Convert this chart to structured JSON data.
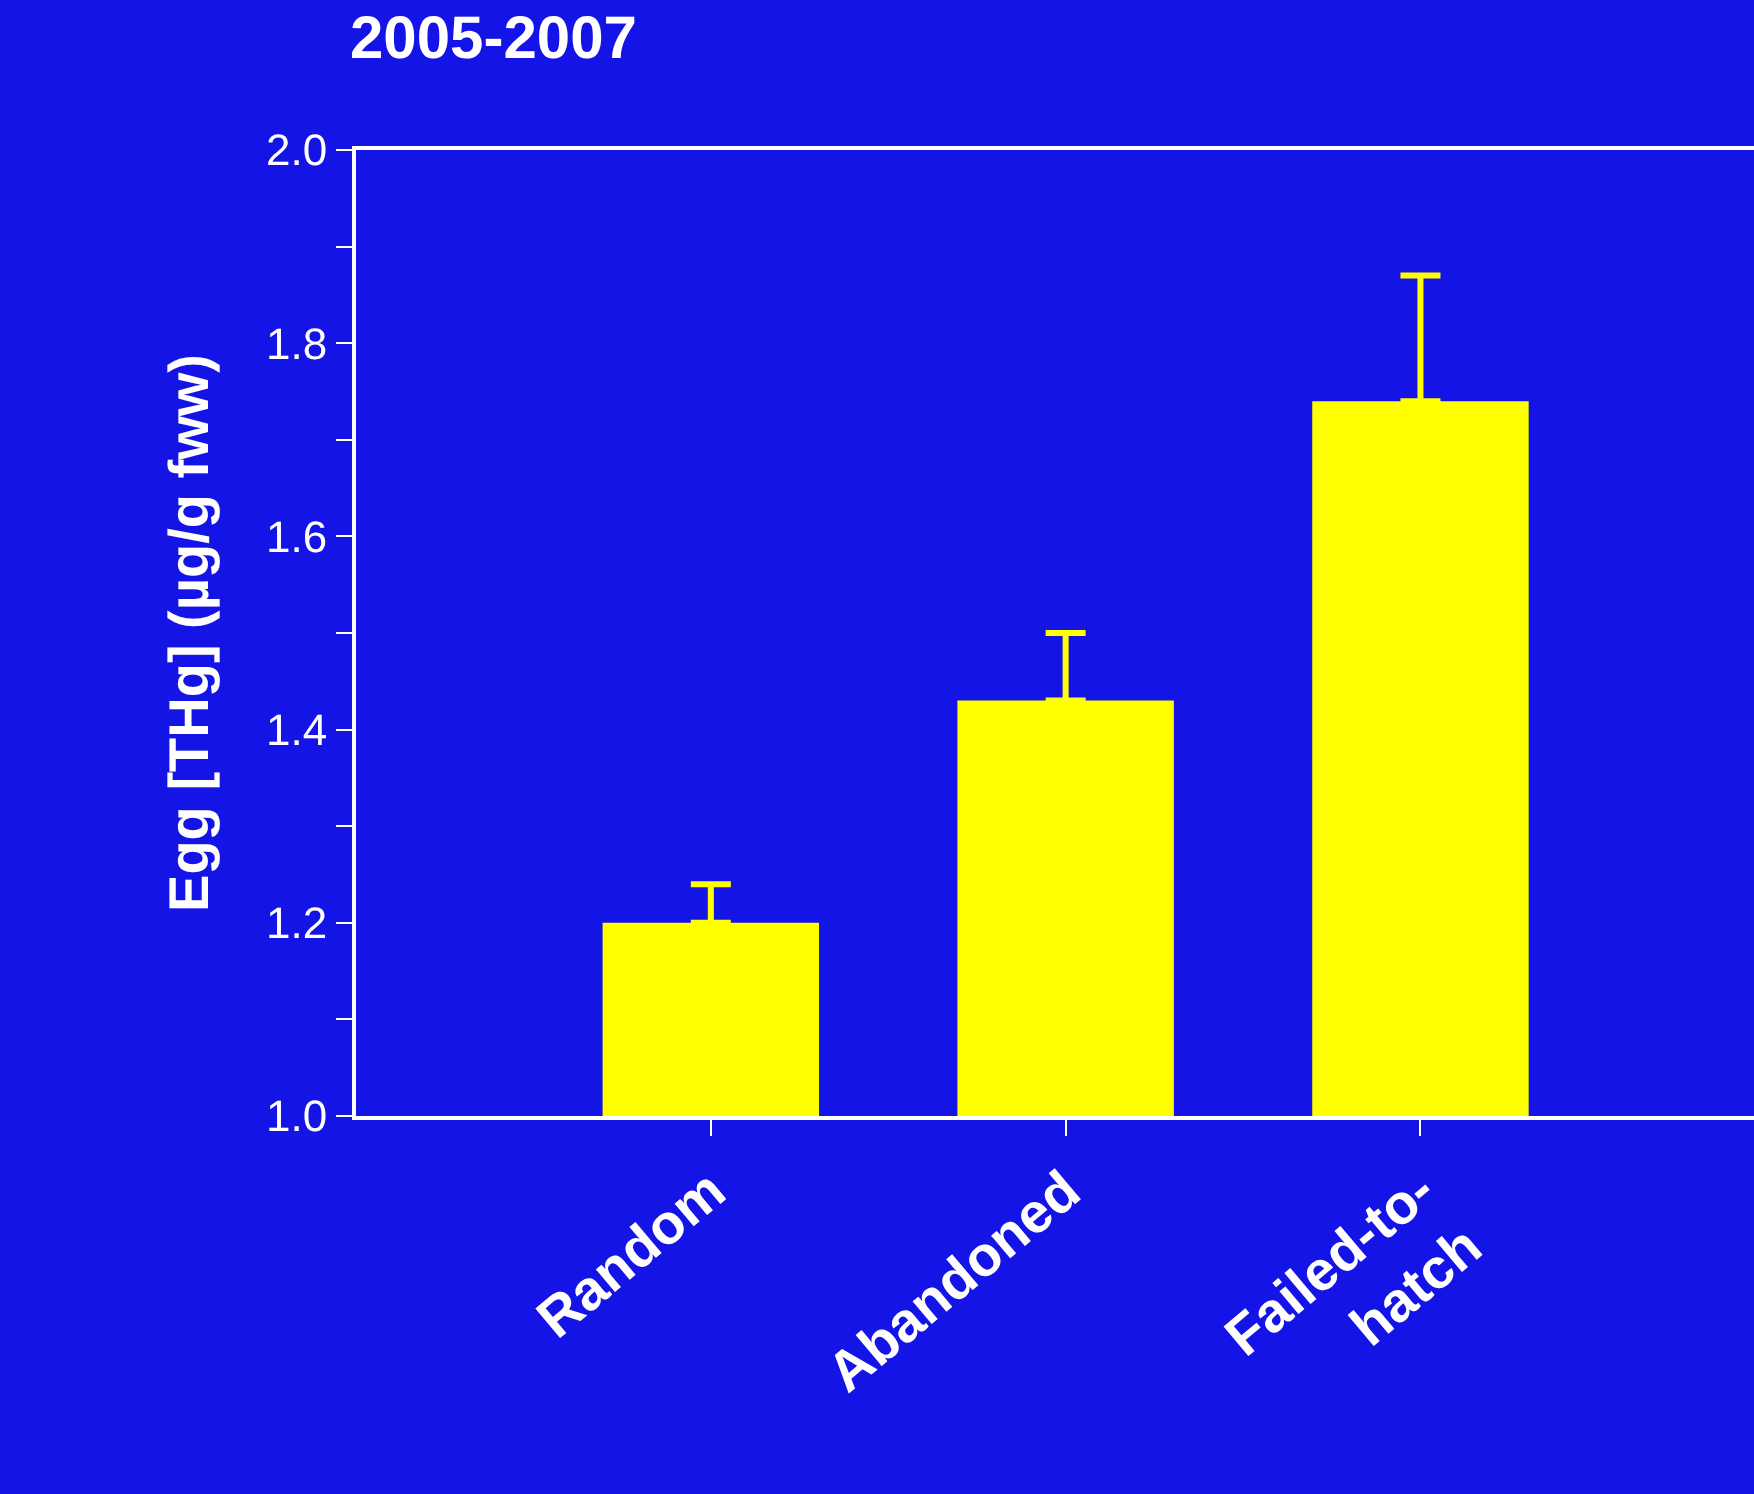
{
  "chart_data": {
    "type": "bar",
    "title": "2005-2007",
    "ylabel": "Egg [THg] (µg/g fww)",
    "categories": [
      "Random",
      "Abandoned",
      "Failed-to-\nhatch"
    ],
    "values": [
      1.2,
      1.43,
      1.74
    ],
    "errors": [
      [
        1.2,
        1.24
      ],
      [
        1.43,
        1.5
      ],
      [
        1.74,
        1.87
      ]
    ],
    "color": "#ffff00",
    "ylim": [
      1.0,
      2.0
    ],
    "yticks": [
      {
        "value": 1.0,
        "label": "1.0"
      },
      {
        "value": 1.1,
        "label": null
      },
      1.2,
      {
        "value": 1.3,
        "label": null
      },
      1.4,
      {
        "value": 1.5,
        "label": null
      },
      1.6,
      {
        "value": 1.7,
        "label": null
      },
      1.8,
      {
        "value": 1.9,
        "label": null
      },
      {
        "value": 2.0,
        "label": "2.0"
      }
    ],
    "grid": false,
    "legend": false
  }
}
